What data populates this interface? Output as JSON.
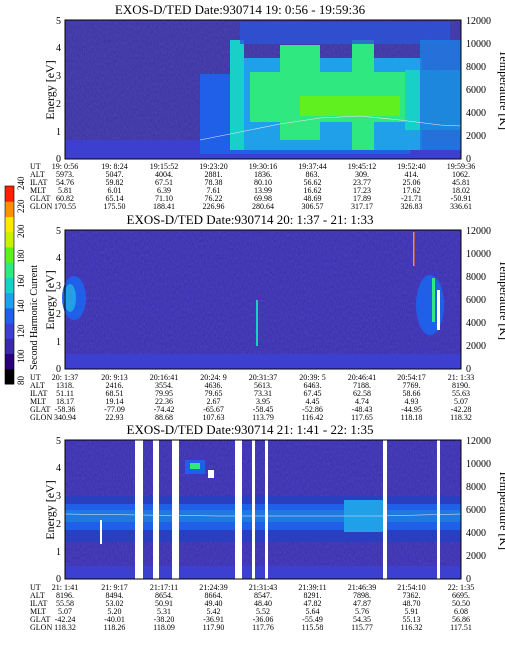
{
  "chart_data": [
    {
      "type": "heatmap",
      "title": "EXOS-D/TED   Date:930714  19: 0:56 - 19:59:36",
      "ylabel": "Energy [eV]",
      "ylabel_right": "Temperature [K]",
      "ylim": [
        0,
        5
      ],
      "ylim_right": [
        0,
        12000
      ],
      "yticks": [
        "0",
        "1",
        "2",
        "3",
        "4",
        "5"
      ],
      "yticks_right": [
        "0",
        "2000",
        "4000",
        "6000",
        "8000",
        "10000",
        "12000"
      ],
      "x_labels": [
        "19: 0:56",
        "19: 8:24",
        "19:15:52",
        "19:23:20",
        "19:30:16",
        "19:37:44",
        "19:45:12",
        "19:52:40",
        "19:59:36"
      ],
      "orbit_rows": [
        {
          "label": "UT",
          "values": [
            "19: 0:56",
            "19: 8:24",
            "19:15:52",
            "19:23:20",
            "19:30:16",
            "19:37:44",
            "19:45:12",
            "19:52:40",
            "19:59:36"
          ]
        },
        {
          "label": "ALT",
          "values": [
            "5973.",
            "5047.",
            "4004.",
            "2881.",
            "1836.",
            "863.",
            "309.",
            "414.",
            "1062."
          ]
        },
        {
          "label": "ILAT",
          "values": [
            "54.76",
            "59.82",
            "67.51",
            "78.38",
            "80.10",
            "56.62",
            "23.77",
            "25.06",
            "45.81"
          ]
        },
        {
          "label": "MLT",
          "values": [
            "5.81",
            "6.01",
            "6.39",
            "7.61",
            "13.99",
            "16.62",
            "17.23",
            "17.62",
            "18.02"
          ]
        },
        {
          "label": "GLAT",
          "values": [
            "60.82",
            "65.14",
            "71.10",
            "76.22",
            "69.98",
            "48.69",
            "17.89",
            "-21.71",
            "-50.91"
          ]
        },
        {
          "label": "GLON",
          "values": [
            "170.55",
            "175.50",
            "188.41",
            "226.96",
            "280.64",
            "306.57",
            "317.17",
            "326.83",
            "336.61"
          ]
        }
      ]
    },
    {
      "type": "heatmap",
      "title": "EXOS-D/TED   Date:930714  20: 1:37 - 21: 1:33",
      "ylabel": "Energy [eV]",
      "ylabel_right": "Temperature [K]",
      "ylim": [
        0,
        5
      ],
      "ylim_right": [
        0,
        12000
      ],
      "yticks": [
        "0",
        "1",
        "2",
        "3",
        "4",
        "5"
      ],
      "yticks_right": [
        "0",
        "2000",
        "4000",
        "6000",
        "8000",
        "10000",
        "12000"
      ],
      "x_labels": [
        "20: 1:37",
        "20: 9:13",
        "20:16:41",
        "20:24: 9",
        "20:31:37",
        "20:39: 5",
        "20:46:41",
        "20:54:17",
        "21: 1:33"
      ],
      "orbit_rows": [
        {
          "label": "UT",
          "values": [
            "20: 1:37",
            "20: 9:13",
            "20:16:41",
            "20:24: 9",
            "20:31:37",
            "20:39: 5",
            "20:46:41",
            "20:54:17",
            "21: 1:33"
          ]
        },
        {
          "label": "ALT",
          "values": [
            "1318.",
            "2416.",
            "3554.",
            "4636.",
            "5613.",
            "6463.",
            "7188.",
            "7769.",
            "8190."
          ]
        },
        {
          "label": "ILAT",
          "values": [
            "51.11",
            "68.51",
            "79.95",
            "79.65",
            "73.31",
            "67.45",
            "62.58",
            "58.66",
            "55.63"
          ]
        },
        {
          "label": "MLT",
          "values": [
            "18.17",
            "19.14",
            "22.36",
            "2.67",
            "3.95",
            "4.45",
            "4.74",
            "4.93",
            "5.07"
          ]
        },
        {
          "label": "GLAT",
          "values": [
            "-58.36",
            "-77.09",
            "-74.42",
            "-65.67",
            "-58.45",
            "-52.86",
            "-48.43",
            "-44.95",
            "-42.28"
          ]
        },
        {
          "label": "GLON",
          "values": [
            "340.94",
            "22.93",
            "88.68",
            "107.63",
            "113.79",
            "116.42",
            "117.65",
            "118.18",
            "118.32"
          ]
        }
      ]
    },
    {
      "type": "heatmap",
      "title": "EXOS-D/TED   Date:930714  21: 1:41 - 22: 1:35",
      "ylabel": "Energy [eV]",
      "ylabel_right": "Temperature [K]",
      "ylim": [
        0,
        5
      ],
      "ylim_right": [
        0,
        12000
      ],
      "yticks": [
        "0",
        "1",
        "2",
        "3",
        "4",
        "5"
      ],
      "yticks_right": [
        "0",
        "2000",
        "4000",
        "6000",
        "8000",
        "10000",
        "12000"
      ],
      "x_labels": [
        "21: 1:41",
        "21: 9:17",
        "21:17:11",
        "21:24:39",
        "21:31:43",
        "21:39:11",
        "21:46:39",
        "21:54:10",
        "22: 1:35"
      ],
      "orbit_rows": [
        {
          "label": "UT",
          "values": [
            "21: 1:41",
            "21: 9:17",
            "21:17:11",
            "21:24:39",
            "21:31:43",
            "21:39:11",
            "21:46:39",
            "21:54:10",
            "22: 1:35"
          ]
        },
        {
          "label": "ALT",
          "values": [
            "8196.",
            "8494.",
            "8654.",
            "8664.",
            "8547.",
            "8291.",
            "7898.",
            "7362.",
            "6695."
          ]
        },
        {
          "label": "ILAT",
          "values": [
            "55.58",
            "53.02",
            "50.91",
            "49.40",
            "48.40",
            "47.82",
            "47.87",
            "48.70",
            "50.50"
          ]
        },
        {
          "label": "MLT",
          "values": [
            "5.07",
            "5.20",
            "5.31",
            "5.42",
            "5.52",
            "5.64",
            "5.76",
            "5.91",
            "6.08"
          ]
        },
        {
          "label": "GLAT",
          "values": [
            "-42.24",
            "-40.01",
            "-38.20",
            "-36.91",
            "-36.06",
            "-55.49",
            "54.35",
            "55.13",
            "56.86"
          ]
        },
        {
          "label": "GLON",
          "values": [
            "118.32",
            "118.26",
            "118.09",
            "117.90",
            "117.76",
            "115.58",
            "115.77",
            "116.32",
            "117.51"
          ]
        }
      ]
    }
  ],
  "colorbar": {
    "label": "Second Harmonic Current",
    "ticks": [
      "80",
      "100",
      "120",
      "140",
      "160",
      "180",
      "200",
      "220",
      "240"
    ],
    "range": [
      80,
      240
    ],
    "colors": [
      "#000000",
      "#2a007a",
      "#3a2aa8",
      "#3d3fd0",
      "#2060e8",
      "#1fa0e8",
      "#18d0c8",
      "#30e880",
      "#60f020",
      "#c8f000",
      "#ffe800",
      "#ff9000",
      "#ff2000"
    ]
  },
  "colors": {
    "background_fill": "#3b2f98",
    "green_band": "#30e880",
    "cyan_band": "#1fa0e8",
    "data_gap": "#ffffff"
  }
}
